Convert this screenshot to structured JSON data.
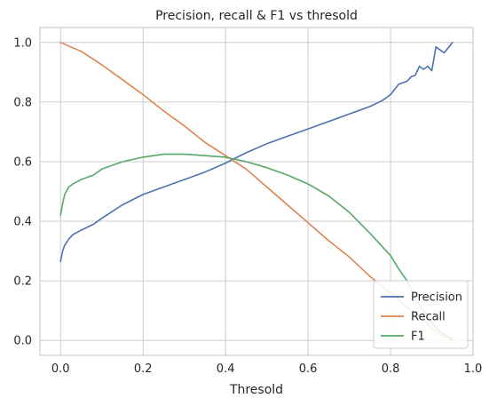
{
  "chart_data": {
    "type": "line",
    "title": "Precision, recall & F1 vs thresold",
    "xlabel": "Thresold",
    "ylabel": "",
    "xlim": [
      -0.05,
      1.0
    ],
    "ylim": [
      -0.05,
      1.05
    ],
    "xticks": [
      0.0,
      0.2,
      0.4,
      0.6,
      0.8,
      1.0
    ],
    "xtick_labels": [
      "0.0",
      "0.2",
      "0.4",
      "0.6",
      "0.8",
      "1.0"
    ],
    "yticks": [
      0.0,
      0.2,
      0.4,
      0.6,
      0.8,
      1.0
    ],
    "ytick_labels": [
      "0.0",
      "0.2",
      "0.4",
      "0.6",
      "0.8",
      "1.0"
    ],
    "grid": true,
    "legend": "lower-right",
    "series": [
      {
        "name": "Precision",
        "color": "#4c72b0",
        "x": [
          0.0,
          0.005,
          0.01,
          0.02,
          0.03,
          0.05,
          0.08,
          0.1,
          0.15,
          0.2,
          0.25,
          0.3,
          0.35,
          0.4,
          0.45,
          0.5,
          0.55,
          0.6,
          0.65,
          0.7,
          0.75,
          0.78,
          0.8,
          0.82,
          0.84,
          0.85,
          0.86,
          0.87,
          0.88,
          0.89,
          0.9,
          0.91,
          0.92,
          0.93,
          0.95
        ],
        "y": [
          0.265,
          0.3,
          0.32,
          0.34,
          0.355,
          0.37,
          0.39,
          0.41,
          0.455,
          0.49,
          0.515,
          0.54,
          0.565,
          0.595,
          0.63,
          0.66,
          0.685,
          0.71,
          0.735,
          0.76,
          0.785,
          0.805,
          0.825,
          0.86,
          0.87,
          0.885,
          0.89,
          0.92,
          0.91,
          0.92,
          0.905,
          0.985,
          0.975,
          0.965,
          1.0
        ]
      },
      {
        "name": "Recall",
        "color": "#dd8452",
        "x": [
          0.0,
          0.05,
          0.1,
          0.15,
          0.2,
          0.25,
          0.3,
          0.35,
          0.4,
          0.45,
          0.5,
          0.55,
          0.6,
          0.65,
          0.7,
          0.75,
          0.8,
          0.85,
          0.88,
          0.9,
          0.92,
          0.95
        ],
        "y": [
          1.0,
          0.97,
          0.925,
          0.875,
          0.825,
          0.77,
          0.72,
          0.665,
          0.62,
          0.575,
          0.515,
          0.455,
          0.395,
          0.335,
          0.28,
          0.215,
          0.16,
          0.1,
          0.07,
          0.04,
          0.02,
          0.0
        ]
      },
      {
        "name": "F1",
        "color": "#55a868",
        "x": [
          0.0,
          0.005,
          0.01,
          0.02,
          0.03,
          0.05,
          0.08,
          0.1,
          0.15,
          0.2,
          0.25,
          0.3,
          0.35,
          0.4,
          0.45,
          0.5,
          0.55,
          0.6,
          0.65,
          0.7,
          0.75,
          0.8,
          0.82,
          0.84,
          0.85,
          0.86,
          0.88,
          0.9,
          0.92,
          0.95
        ],
        "y": [
          0.42,
          0.46,
          0.49,
          0.515,
          0.525,
          0.54,
          0.555,
          0.575,
          0.6,
          0.615,
          0.625,
          0.625,
          0.62,
          0.615,
          0.6,
          0.58,
          0.555,
          0.525,
          0.485,
          0.43,
          0.36,
          0.285,
          0.24,
          0.2,
          0.17,
          0.14,
          0.1,
          0.06,
          0.03,
          0.005
        ]
      }
    ]
  }
}
